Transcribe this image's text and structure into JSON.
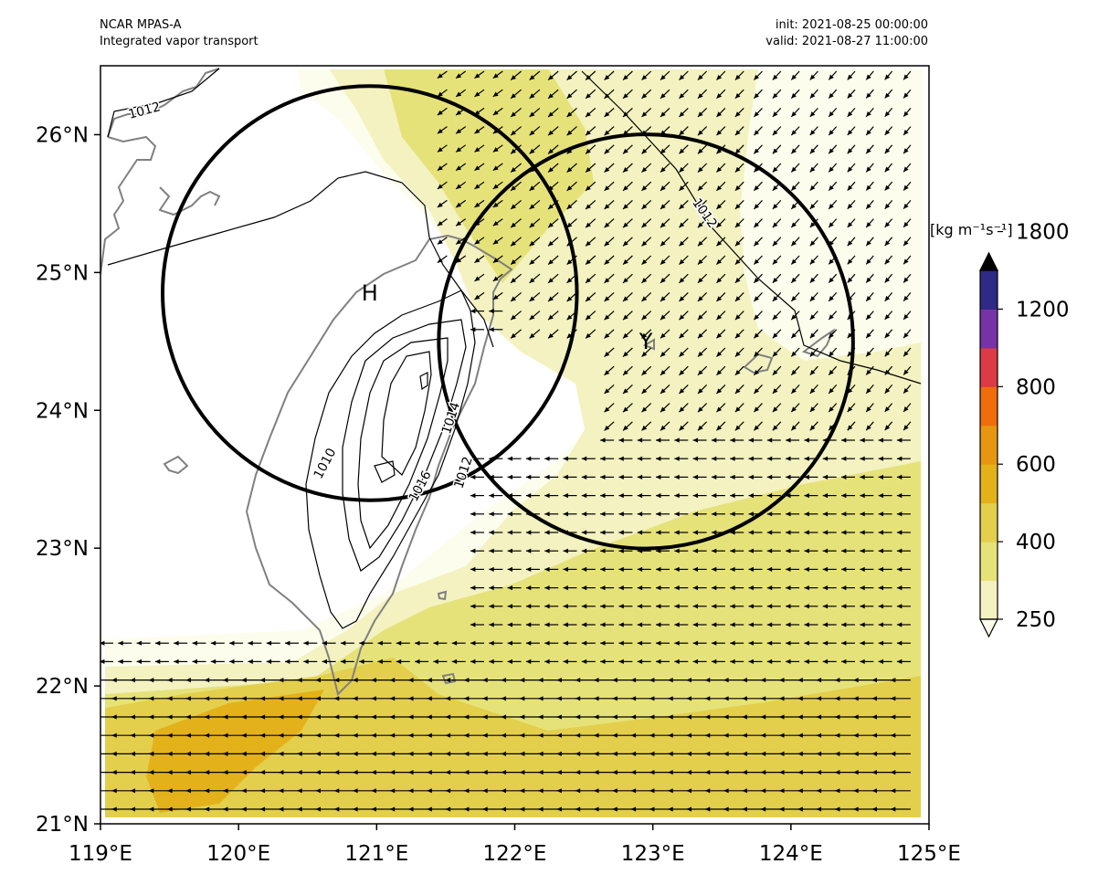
{
  "header": {
    "model": "NCAR MPAS-A",
    "field": "Integrated vapor transport",
    "init": "init: 2021-08-25 00:00:00",
    "valid": "valid: 2021-08-27 11:00:00"
  },
  "map": {
    "lon_range": [
      119,
      125
    ],
    "lat_range": [
      21,
      26.5
    ],
    "x_ticks": [
      "119°E",
      "120°E",
      "121°E",
      "122°E",
      "123°E",
      "124°E",
      "125°E"
    ],
    "y_ticks": [
      "21°N",
      "22°N",
      "23°N",
      "24°N",
      "25°N",
      "26°N"
    ],
    "colors": {
      "ivt_250": "#fcfdec",
      "ivt_300": "#f3f2c0",
      "ivt_400": "#e6e27a",
      "ivt_500": "#e3cf4c",
      "ivt_600": "#e3b21a",
      "coast": "#808080",
      "contour": "#000000"
    },
    "pressure_contour_labels": [
      "1012",
      "1012",
      "1010",
      "1016",
      "1012",
      "1014",
      "1012"
    ],
    "markers": [
      {
        "label": "H",
        "lon": 120.95,
        "lat": 24.85
      },
      {
        "label": "Y",
        "lon": 122.95,
        "lat": 24.5
      }
    ],
    "circles": [
      {
        "center_lon": 120.95,
        "center_lat": 24.85,
        "radius_deg": 1.5
      },
      {
        "center_lon": 122.95,
        "center_lat": 24.5,
        "radius_deg": 1.5
      }
    ]
  },
  "colorbar": {
    "units": "[kg m⁻¹s⁻¹]",
    "tick_labels": [
      "250",
      "400",
      "600",
      "800",
      "1200",
      "1800"
    ],
    "levels": [
      250,
      300,
      400,
      500,
      600,
      700,
      800,
      1000,
      1200,
      1500,
      1800
    ],
    "colors": [
      "#f3f2c0",
      "#e6e27a",
      "#e3cf4c",
      "#e3b21a",
      "#e6970f",
      "#ef6d0b",
      "#dc3a45",
      "#7733a5",
      "#2e2a85"
    ],
    "extend_low": "#fcfdec",
    "extend_high": "#000000"
  },
  "chart_data": {
    "type": "heatmap",
    "title": "Integrated vapor transport",
    "xlabel": "",
    "ylabel": "",
    "xlim": [
      119,
      125
    ],
    "ylim": [
      21,
      26.5
    ],
    "units": "kg m-1 s-1",
    "levels": [
      250,
      300,
      400,
      500,
      600,
      700,
      800,
      1000,
      1200,
      1500,
      1800
    ],
    "colorbar_ticks": [
      250,
      400,
      600,
      800,
      1200,
      1800
    ],
    "notes": "Filled contours of IVT with vapor-flux vectors (mostly westward), sea-level pressure contours 1010-1016 hPa over Taiwan, two 1.5-degree circles centered on H and Y"
  }
}
